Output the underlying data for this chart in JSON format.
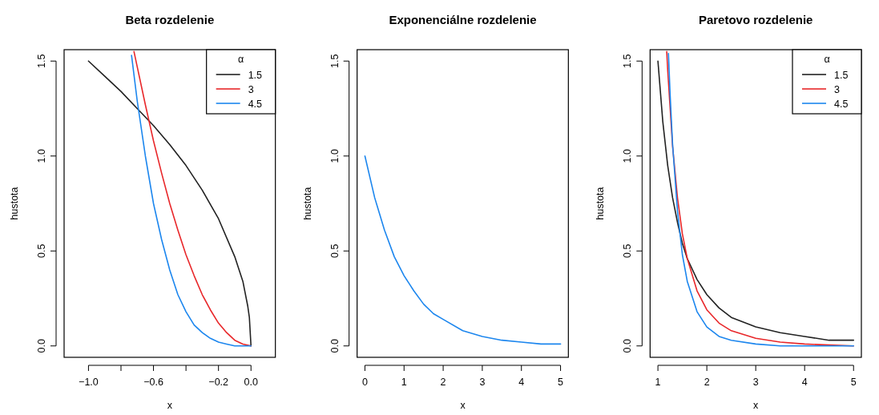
{
  "chart_data": [
    {
      "type": "line",
      "title": "Beta rozdelenie",
      "xlabel": "x",
      "ylabel": "hustota",
      "legend_title": "α",
      "legend": "top right",
      "xlim": [
        -1.15,
        0.15
      ],
      "ylim": [
        -0.06,
        1.56
      ],
      "xticks": [
        {
          "value": -1,
          "label": "−1.0"
        },
        {
          "value": -0.8,
          "label": null
        },
        {
          "value": -0.6,
          "label": "−0.6"
        },
        {
          "value": -0.4,
          "label": null
        },
        {
          "value": -0.2,
          "label": "−0.2"
        },
        {
          "value": 0,
          "label": "0.0"
        }
      ],
      "yticks": [
        {
          "value": 0,
          "label": "0.0"
        },
        {
          "value": 0.5,
          "label": "0.5"
        },
        {
          "value": 1,
          "label": "1.0"
        },
        {
          "value": 1.5,
          "label": "1.5"
        }
      ],
      "series": [
        {
          "name": "1.5",
          "color": "#222222",
          "x": [
            -1,
            -0.9,
            -0.8,
            -0.7,
            -0.6,
            -0.5,
            -0.4,
            -0.3,
            -0.2,
            -0.1,
            -0.05,
            -0.02,
            -0.01,
            0
          ],
          "values": [
            1.5,
            1.42,
            1.34,
            1.25,
            1.16,
            1.06,
            0.95,
            0.82,
            0.67,
            0.47,
            0.34,
            0.21,
            0.15,
            0
          ]
        },
        {
          "name": "3",
          "color": "#e8272a",
          "x": [
            -0.72,
            -0.7,
            -0.65,
            -0.6,
            -0.55,
            -0.5,
            -0.45,
            -0.4,
            -0.35,
            -0.3,
            -0.25,
            -0.2,
            -0.15,
            -0.1,
            -0.05,
            0
          ],
          "values": [
            1.55,
            1.47,
            1.27,
            1.08,
            0.91,
            0.75,
            0.61,
            0.48,
            0.37,
            0.27,
            0.19,
            0.12,
            0.07,
            0.03,
            0.01,
            0
          ]
        },
        {
          "name": "4.5",
          "color": "#1c86ee",
          "x": [
            -0.735,
            -0.7,
            -0.65,
            -0.6,
            -0.55,
            -0.5,
            -0.45,
            -0.4,
            -0.35,
            -0.3,
            -0.25,
            -0.2,
            -0.15,
            -0.1,
            -0.05,
            0
          ],
          "values": [
            1.53,
            1.29,
            1.0,
            0.75,
            0.56,
            0.4,
            0.27,
            0.18,
            0.11,
            0.07,
            0.04,
            0.02,
            0.01,
            0,
            0,
            0
          ]
        }
      ]
    },
    {
      "type": "line",
      "title": "Exponenciálne rozdelenie",
      "xlabel": "x",
      "ylabel": "hustota",
      "xlim": [
        -0.2,
        5.2
      ],
      "ylim": [
        -0.06,
        1.56
      ],
      "xticks": [
        0,
        1,
        2,
        3,
        4,
        5
      ],
      "yticks": [
        {
          "value": 0,
          "label": "0.0"
        },
        {
          "value": 0.5,
          "label": "0.5"
        },
        {
          "value": 1,
          "label": "1.0"
        },
        {
          "value": 1.5,
          "label": "1.5"
        }
      ],
      "series": [
        {
          "color": "#1c86ee",
          "x": [
            0,
            0.25,
            0.5,
            0.75,
            1,
            1.25,
            1.5,
            1.75,
            2,
            2.5,
            3,
            3.5,
            4,
            4.5,
            5
          ],
          "values": [
            1,
            0.78,
            0.61,
            0.47,
            0.37,
            0.29,
            0.22,
            0.17,
            0.14,
            0.08,
            0.05,
            0.03,
            0.02,
            0.01,
            0.01
          ]
        }
      ]
    },
    {
      "type": "line",
      "title": "Paretovo rozdelenie",
      "xlabel": "x",
      "ylabel": "hustota",
      "legend_title": "α",
      "legend": "top right",
      "xlim": [
        0.84,
        5.16
      ],
      "ylim": [
        -0.06,
        1.56
      ],
      "xticks": [
        1,
        2,
        3,
        4,
        5
      ],
      "yticks": [
        {
          "value": 0,
          "label": "0.0"
        },
        {
          "value": 0.5,
          "label": "0.5"
        },
        {
          "value": 1,
          "label": "1.0"
        },
        {
          "value": 1.5,
          "label": "1.5"
        }
      ],
      "series": [
        {
          "name": "1.5",
          "color": "#222222",
          "x": [
            1,
            1.1,
            1.2,
            1.3,
            1.4,
            1.5,
            1.6,
            1.8,
            2,
            2.25,
            2.5,
            3,
            3.5,
            4,
            4.5,
            5
          ],
          "values": [
            1.5,
            1.18,
            0.95,
            0.78,
            0.65,
            0.54,
            0.46,
            0.35,
            0.27,
            0.2,
            0.15,
            0.1,
            0.07,
            0.05,
            0.03,
            0.03
          ]
        },
        {
          "name": "3",
          "color": "#e8272a",
          "x": [
            1.18,
            1.2,
            1.3,
            1.4,
            1.5,
            1.6,
            1.8,
            2,
            2.25,
            2.5,
            3,
            3.5,
            4,
            5
          ],
          "values": [
            1.55,
            1.45,
            1.05,
            0.78,
            0.59,
            0.46,
            0.29,
            0.19,
            0.12,
            0.08,
            0.04,
            0.02,
            0.01,
            0
          ]
        },
        {
          "name": "4.5",
          "color": "#1c86ee",
          "x": [
            1.215,
            1.25,
            1.3,
            1.4,
            1.5,
            1.6,
            1.8,
            2,
            2.25,
            2.5,
            3,
            3.5,
            4,
            5
          ],
          "values": [
            1.54,
            1.32,
            1.06,
            0.71,
            0.48,
            0.34,
            0.18,
            0.1,
            0.05,
            0.03,
            0.01,
            0,
            0,
            0
          ]
        }
      ]
    }
  ]
}
